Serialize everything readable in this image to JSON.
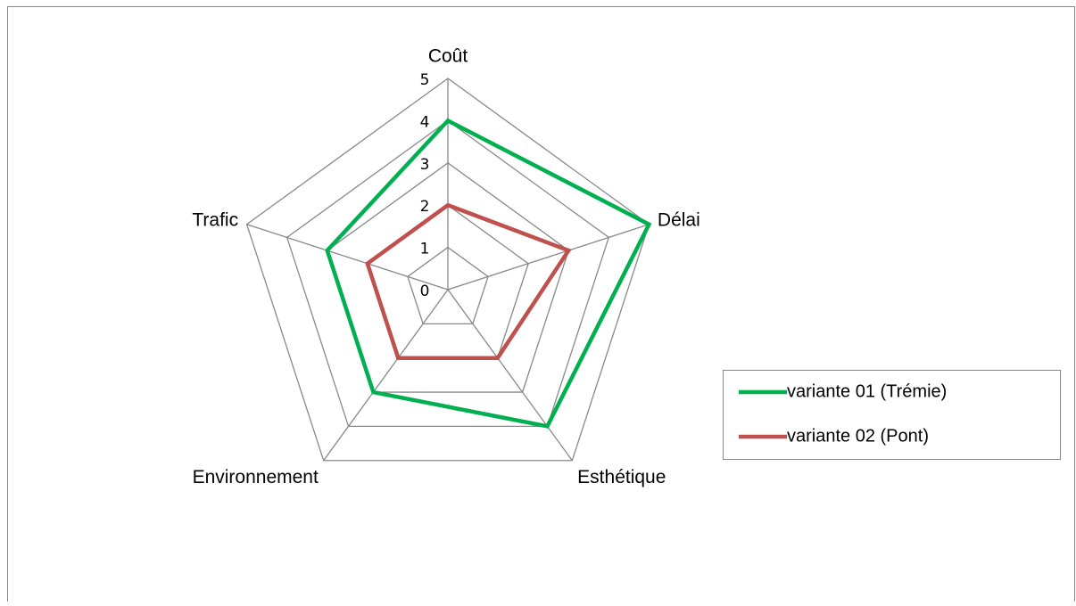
{
  "chart_data": {
    "type": "radar",
    "categories": [
      "Coût",
      "Délai",
      "Esthétique",
      "Environnement",
      "Trafic"
    ],
    "series": [
      {
        "name": "variante 01 (Trémie)",
        "color": "#00b050",
        "values": [
          4,
          5,
          4,
          3,
          3
        ]
      },
      {
        "name": "variante 02 (Pont)",
        "color": "#c0504d",
        "values": [
          2,
          3,
          2,
          2,
          2
        ]
      }
    ],
    "rlim": [
      0,
      5
    ],
    "rticks": [
      0,
      1,
      2,
      3,
      4,
      5
    ],
    "grid": true,
    "legend": "right"
  }
}
